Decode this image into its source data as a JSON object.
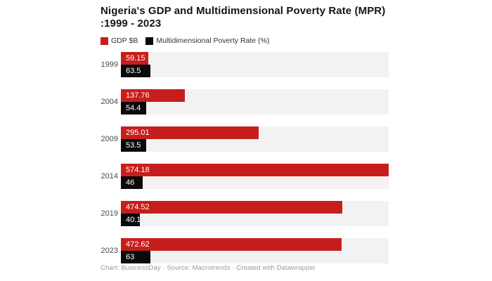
{
  "title": {
    "line1": "Nigeria's GDP and Multidimensional Poverty Rate (MPR)",
    "line2": ":1999 - 2023"
  },
  "legend": [
    {
      "label": "GDP $B",
      "color": "#c71e1d"
    },
    {
      "label": "Multidimensional Poverty Rate (%)",
      "color": "#0a0a0a"
    }
  ],
  "colors": {
    "gdp_bar": "#c71e1d",
    "mpr_bar": "#0a0a0a",
    "track": "#f2f2f2",
    "value_text": "#ffffff"
  },
  "chart_data": {
    "type": "bar",
    "orientation": "horizontal",
    "title": "Nigeria's GDP and Multidimensional Poverty Rate (MPR) :1999 - 2023",
    "categories": [
      "1999",
      "2004",
      "2009",
      "2014",
      "2019",
      "2023"
    ],
    "series": [
      {
        "name": "GDP $B",
        "color": "#c71e1d",
        "values": [
          59.15,
          137.76,
          295.01,
          574.18,
          474.52,
          472.62
        ],
        "labels": [
          "59.15",
          "137.76",
          "295.01",
          "574.18",
          "474.52",
          "472.62"
        ]
      },
      {
        "name": "Multidimensional Poverty Rate (%)",
        "color": "#0a0a0a",
        "values": [
          63.5,
          54.4,
          53.5,
          46,
          40.1,
          63
        ],
        "labels": [
          "63.5",
          "54.4",
          "53.5",
          "46",
          "40.1",
          "63"
        ]
      }
    ],
    "xmax": 574.18,
    "grid": false,
    "legend_position": "top",
    "value_labels_inside": true
  },
  "footer": {
    "text": "Chart: BusinessDay · Source: Macrotrends · Created with Datawrapper"
  }
}
